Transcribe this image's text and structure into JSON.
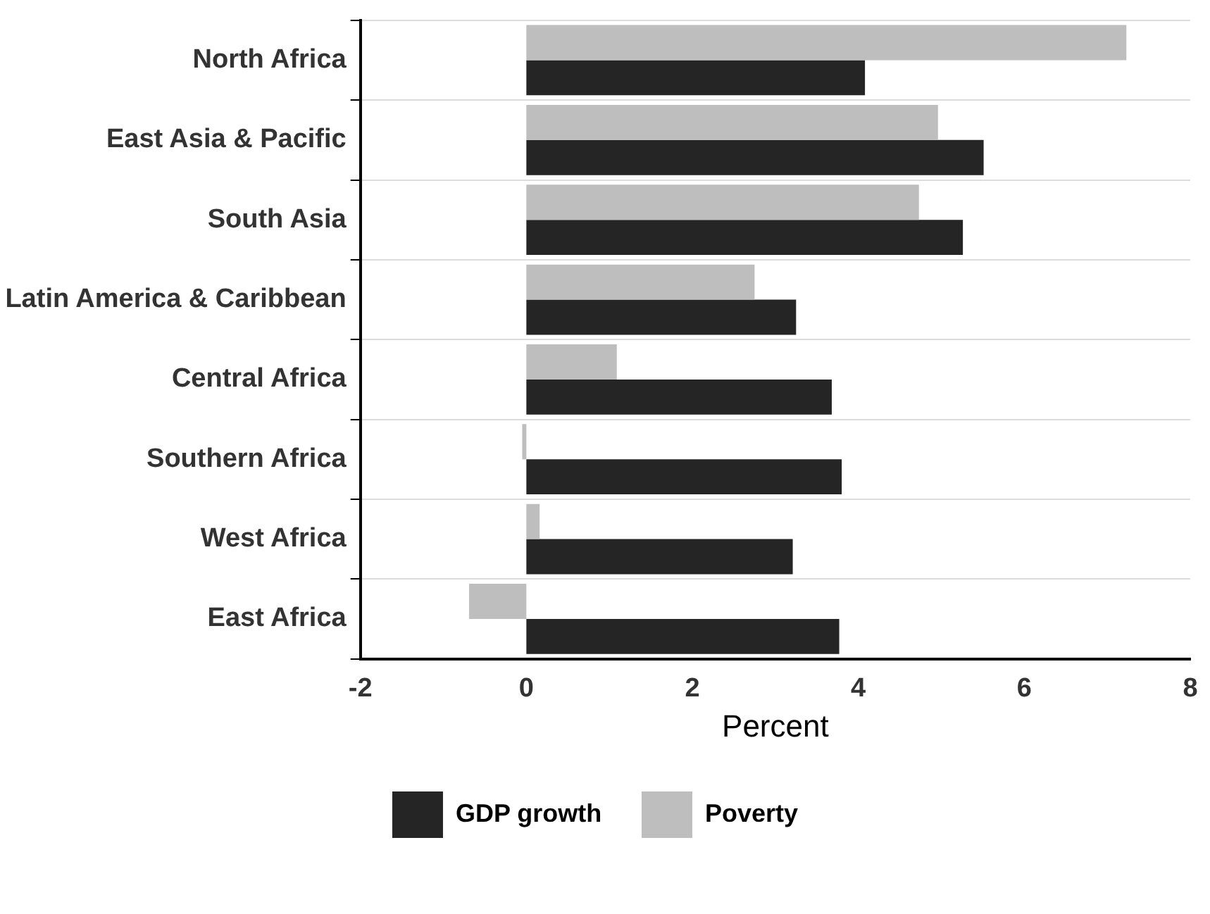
{
  "chart_data": {
    "type": "bar",
    "orientation": "horizontal",
    "xlabel": "Percent",
    "categories": [
      "North Africa",
      "East Asia & Pacific",
      "South Asia",
      "Latin America & Caribbean",
      "Central Africa",
      "Southern Africa",
      "West Africa",
      "East Africa"
    ],
    "series": [
      {
        "name": "GDP growth",
        "color": "#252525",
        "values": [
          4.08,
          5.51,
          5.26,
          3.25,
          3.68,
          3.8,
          3.21,
          3.77
        ]
      },
      {
        "name": "Poverty",
        "color": "#bebebe",
        "values": [
          7.23,
          4.96,
          4.73,
          2.75,
          1.09,
          -0.05,
          0.16,
          -0.69
        ]
      }
    ],
    "xlim": [
      -2,
      8
    ],
    "xticks": [
      -2,
      0,
      2,
      4,
      6,
      8
    ],
    "grid": "y",
    "legend": "bottom"
  }
}
